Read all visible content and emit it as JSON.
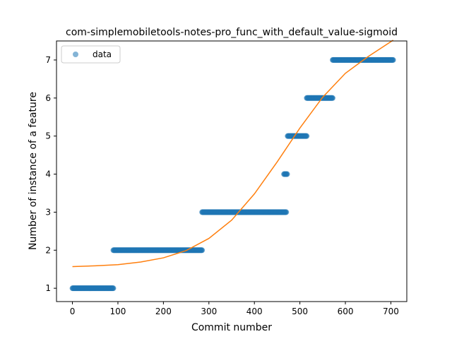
{
  "chart_data": {
    "type": "scatter",
    "title": "com-simplemobiletools-notes-pro_func_with_default_value-sigmoid",
    "xlabel": "Commit number",
    "ylabel": "Number of instance of a feature",
    "xlim": [
      -35,
      735
    ],
    "ylim": [
      0.65,
      7.5
    ],
    "xticks": [
      0,
      100,
      200,
      300,
      400,
      500,
      600,
      700
    ],
    "yticks": [
      1,
      2,
      3,
      4,
      5,
      6,
      7
    ],
    "grid": false,
    "legend": {
      "placement": "top-left",
      "entries": [
        "data"
      ]
    },
    "series": [
      {
        "name": "data",
        "kind": "scatter",
        "color": "#1f77b4",
        "segments": [
          {
            "x_start": 0,
            "x_end": 90,
            "y": 1
          },
          {
            "x_start": 90,
            "x_end": 285,
            "y": 2
          },
          {
            "x_start": 285,
            "x_end": 470,
            "y": 3
          },
          {
            "x_start": 465,
            "x_end": 472,
            "y": 4
          },
          {
            "x_start": 473,
            "x_end": 515,
            "y": 5
          },
          {
            "x_start": 515,
            "x_end": 572,
            "y": 6
          },
          {
            "x_start": 572,
            "x_end": 705,
            "y": 7
          }
        ]
      },
      {
        "kind": "line",
        "color": "#ff7f0e",
        "x": [
          0,
          50,
          100,
          150,
          200,
          250,
          300,
          350,
          400,
          450,
          500,
          550,
          600,
          650,
          705
        ],
        "y": [
          1.57,
          1.59,
          1.62,
          1.69,
          1.8,
          1.99,
          2.31,
          2.79,
          3.48,
          4.32,
          5.21,
          6.02,
          6.65,
          7.09,
          7.52
        ]
      }
    ]
  }
}
